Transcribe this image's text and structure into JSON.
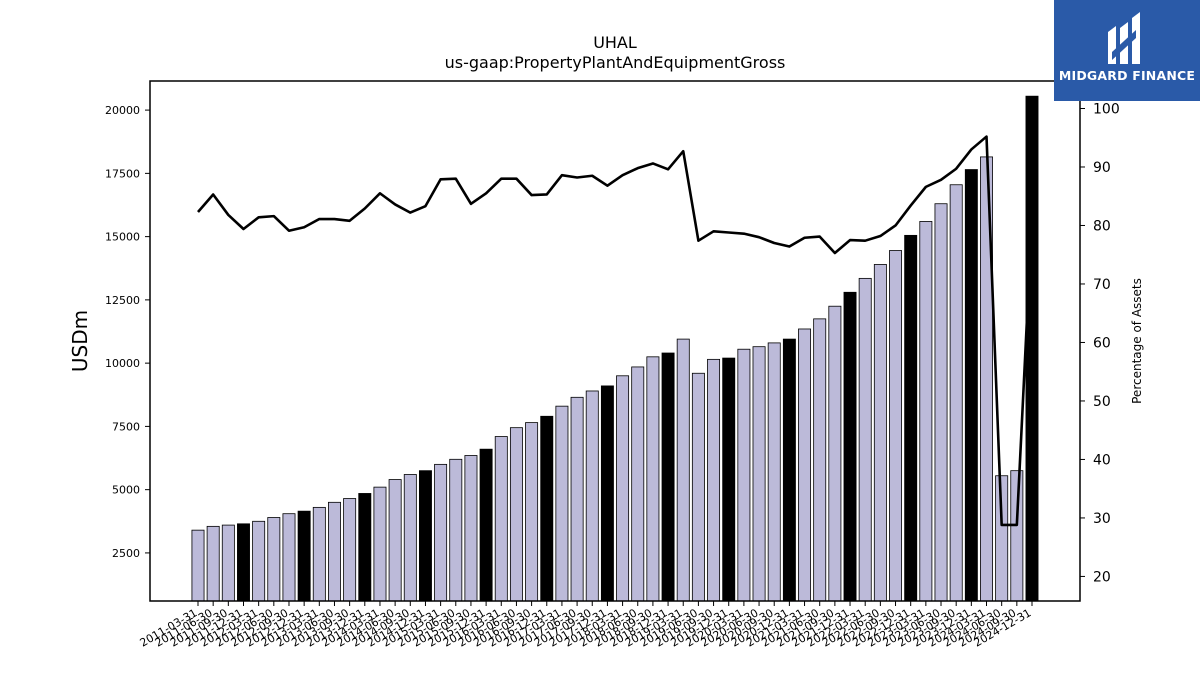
{
  "chart_data": {
    "type": "bar",
    "title": "UHAL",
    "subtitle": "us-gaap:PropertyPlantAndEquipmentGross",
    "ylabel": "USDm",
    "y2label": "Percentage of Assets",
    "ylim": [
      600,
      21150
    ],
    "y2lim": [
      15.8,
      104.7
    ],
    "yticks": [
      2500,
      5000,
      7500,
      10000,
      12500,
      15000,
      17500,
      20000
    ],
    "y2ticks": [
      20,
      30,
      40,
      50,
      60,
      70,
      80,
      90,
      100
    ],
    "categories": [
      "2011-03-31",
      "2011-06-30",
      "2011-09-30",
      "2011-12-31",
      "2012-03-31",
      "2012-06-30",
      "2012-09-30",
      "2012-12-31",
      "2013-03-31",
      "2013-06-30",
      "2013-09-30",
      "2013-12-31",
      "2014-03-31",
      "2014-06-30",
      "2014-09-30",
      "2014-12-31",
      "2015-03-31",
      "2015-06-30",
      "2015-09-30",
      "2015-12-31",
      "2016-03-31",
      "2016-06-30",
      "2016-09-30",
      "2016-12-31",
      "2017-03-31",
      "2017-06-30",
      "2017-09-30",
      "2017-12-31",
      "2018-03-31",
      "2018-06-30",
      "2018-09-30",
      "2018-12-31",
      "2019-03-31",
      "2019-06-30",
      "2019-09-30",
      "2019-12-31",
      "2020-03-31",
      "2020-06-30",
      "2020-09-30",
      "2020-12-31",
      "2021-03-31",
      "2021-06-30",
      "2021-09-30",
      "2021-12-31",
      "2022-03-31",
      "2022-06-30",
      "2022-09-30",
      "2022-12-31",
      "2023-03-31",
      "2023-06-30",
      "2023-09-30",
      "2023-12-31",
      "2024-03-31",
      "2024-06-30",
      "2024-09-30",
      "2024-12-31"
    ],
    "highlight_color": "#000000",
    "bar_color": "#bcbad9",
    "line_color": "#000000",
    "series": [
      {
        "axis": "left",
        "kind": "bar",
        "values": [
          3400,
          3550,
          3600,
          3650,
          3750,
          3900,
          4050,
          4150,
          4300,
          4500,
          4650,
          4850,
          5100,
          5400,
          5600,
          5750,
          6000,
          6200,
          6350,
          6600,
          7100,
          7450,
          7650,
          7900,
          8300,
          8650,
          8900,
          9100,
          9500,
          9850,
          10250,
          10400,
          10950,
          9600,
          10150,
          10200,
          10550,
          10650,
          10800,
          10950,
          11350,
          11750,
          12250,
          12800,
          13350,
          13900,
          14450,
          15050,
          15600,
          16300,
          17050,
          17650,
          18150,
          5550,
          5750,
          20550
        ]
      },
      {
        "axis": "right",
        "kind": "line",
        "values": [
          82.3,
          85.3,
          81.8,
          79.4,
          81.4,
          81.6,
          79.1,
          79.7,
          81.1,
          81.1,
          80.8,
          82.9,
          85.5,
          83.6,
          82.2,
          83.3,
          87.9,
          88.0,
          83.7,
          85.5,
          88.0,
          88.0,
          85.2,
          85.3,
          88.6,
          88.2,
          88.5,
          86.8,
          88.6,
          89.8,
          90.6,
          89.6,
          92.7,
          77.4,
          79.0,
          78.8,
          78.6,
          78.0,
          77.0,
          76.4,
          77.9,
          78.1,
          75.3,
          77.5,
          77.4,
          78.2,
          80.0,
          83.4,
          86.6,
          87.8,
          89.7,
          93.0,
          95.2,
          28.8,
          28.8,
          81.4
        ]
      }
    ]
  }
}
